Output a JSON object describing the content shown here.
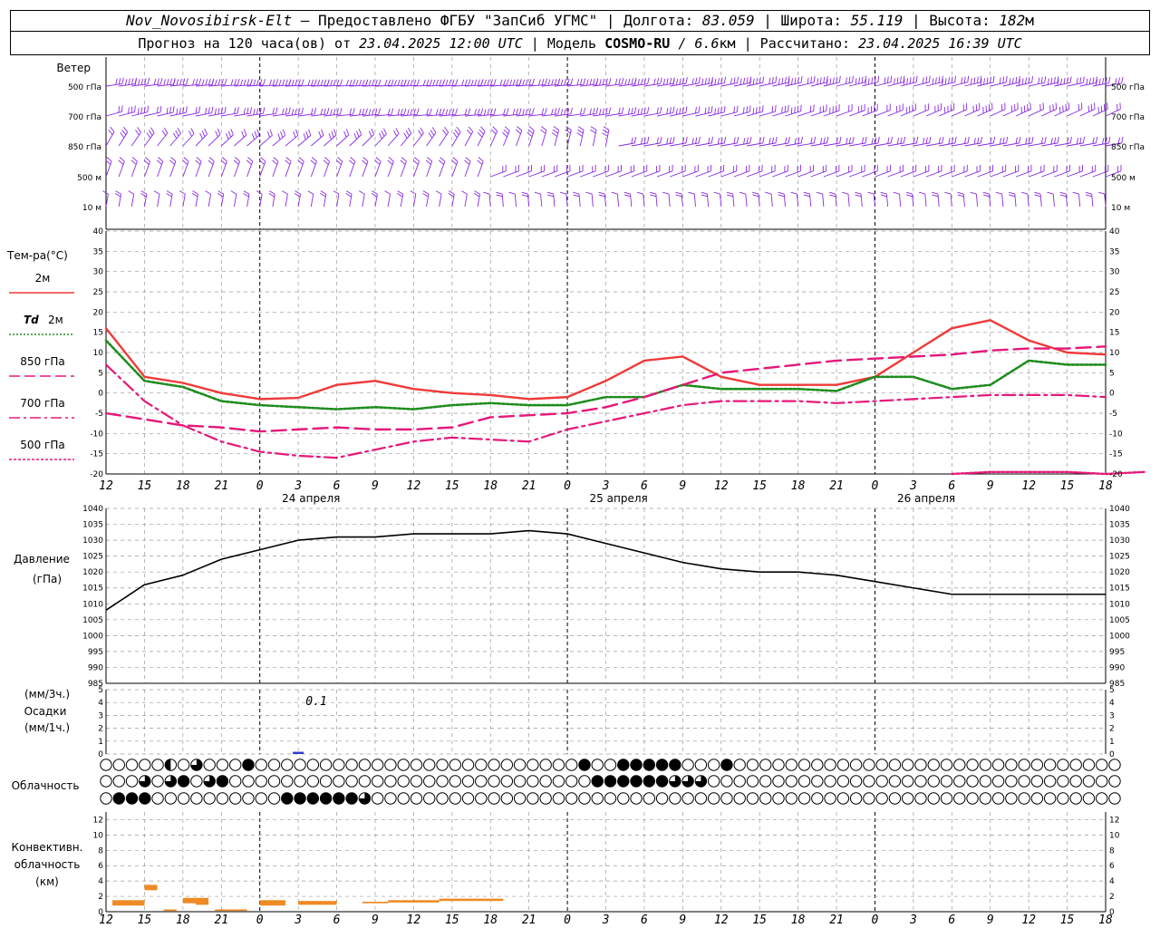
{
  "header": {
    "station": "Nov_Novosibirsk-Elt",
    "sep1": " – Предоставлено ФГБУ \"ЗапСиб УГМС\" | ",
    "lon_label": "Долгота: ",
    "lon": "83.059",
    "lat_label": " | Широта: ",
    "lat": "55.119",
    "alt_label": " | Высота: ",
    "alt": "182",
    "alt_unit": "м",
    "forecast_label": "Прогноз на 120 часа(ов) от ",
    "forecast_time": "23.04.2025 12:00 UTC",
    "model_label": " | Модель ",
    "model": "COSMO-RU",
    "res": " / 6.6",
    "res_unit": "км",
    "calc_label": " | Рассчитано: ",
    "calc_time": "23.04.2025 16:39 UTC"
  },
  "x_axis": {
    "tick_labels": [
      "12",
      "15",
      "18",
      "21",
      "0",
      "3",
      "6",
      "9",
      "12",
      "15",
      "18",
      "21",
      "0",
      "3",
      "6",
      "9",
      "12",
      "15",
      "18",
      "21",
      "0",
      "3",
      "6",
      "9",
      "12",
      "15",
      "18"
    ],
    "date_labels": [
      {
        "text": "24 апреля",
        "hour": 16
      },
      {
        "text": "25 апреля",
        "hour": 40
      },
      {
        "text": "26 апреля",
        "hour": 64
      }
    ]
  },
  "wind_panel": {
    "title": "Ветер",
    "levels": [
      "500 гПа",
      "700 гПа",
      "850 гПа",
      "500 м",
      "10 м"
    ],
    "color": "#8a2be2"
  },
  "temp_panel": {
    "title": "Тем-ра(°C)",
    "legend": [
      {
        "label": "2м",
        "label_prefix": "",
        "color": "#ef3a3a",
        "style": "solid"
      },
      {
        "label": "2м",
        "label_prefix": "Td",
        "color": "#1e8c1e",
        "style": "dotted"
      },
      {
        "label": "850 гПа",
        "label_prefix": "",
        "color": "#e5187a",
        "style": "dash"
      },
      {
        "label": "700 гПа",
        "label_prefix": "",
        "color": "#e5187a",
        "style": "dashdot"
      },
      {
        "label": "500 гПа",
        "label_prefix": "",
        "color": "#e5187a",
        "style": "dot"
      }
    ],
    "yticks": [
      40,
      35,
      30,
      25,
      20,
      15,
      10,
      5,
      0,
      -5,
      -10,
      -15,
      -20
    ]
  },
  "pressure_panel": {
    "title": "Давление",
    "unit": "(гПа)",
    "yticks": [
      1040,
      1035,
      1030,
      1025,
      1020,
      1015,
      1010,
      1005,
      1000,
      995,
      990,
      985
    ]
  },
  "precip_panel": {
    "unit_top": "(мм/3ч.)",
    "title": "Осадки",
    "unit_bottom": "(мм/1ч.)",
    "yticks": [
      5,
      4,
      3,
      2,
      1,
      0
    ],
    "annotation": "0.1"
  },
  "cloud_panel": {
    "title": "Облачность"
  },
  "conv_panel": {
    "title_lines": [
      "Конвективн.",
      "облачность",
      "(км)"
    ],
    "yticks": [
      12,
      10,
      8,
      6,
      4,
      2,
      0
    ],
    "color": "#f08a24"
  },
  "chart_data": {
    "type": "line",
    "x_hours": [
      0,
      3,
      6,
      9,
      12,
      15,
      18,
      21,
      24,
      27,
      30,
      33,
      36,
      39,
      42,
      45,
      48,
      51,
      54,
      57,
      60,
      63,
      66,
      69,
      72,
      75,
      78
    ],
    "series": [
      {
        "name": "2м",
        "values": [
          16,
          4,
          2.5,
          0,
          -1.5,
          -1.2,
          2,
          3,
          1,
          0,
          -0.5,
          -1.5,
          -1,
          3,
          8,
          9,
          4,
          2,
          2,
          2,
          4,
          10,
          16,
          18,
          13,
          10,
          9.5
        ]
      },
      {
        "name": "Td 2м",
        "values": [
          13,
          3,
          1.5,
          -2,
          -3,
          -3.5,
          -4,
          -3.5,
          -4,
          -3,
          -2.5,
          -3,
          -3,
          -1,
          -1,
          2,
          1,
          1,
          1,
          0.5,
          4,
          4,
          1,
          2,
          8,
          7,
          7
        ]
      },
      {
        "name": "850 гПа",
        "values": [
          -5,
          -6.5,
          -8,
          -8.5,
          -9.5,
          -9,
          -8.5,
          -9,
          -9,
          -8.5,
          -6,
          -5.5,
          -5,
          -3.5,
          -1,
          2,
          5,
          6,
          7,
          8,
          8.5,
          9,
          9.5,
          10.5,
          11,
          11,
          11.5
        ]
      },
      {
        "name": "700 гПа",
        "values": [
          7,
          -2,
          -8,
          -12,
          -14.5,
          -15.5,
          -16,
          -14,
          -12,
          -11,
          -11.5,
          -12,
          -9,
          -7,
          -5,
          -3,
          -2,
          -2,
          -2,
          -2.5,
          -2,
          -1.5,
          -1,
          -0.5,
          -0.5,
          -0.5,
          -1
        ]
      },
      {
        "name": "500 гПа",
        "x_start": 66,
        "values_from_x66": [
          -20,
          -19.5,
          -19.5,
          -19.5,
          -20,
          -19.5
        ]
      }
    ],
    "pressure": {
      "name": "Давление",
      "values": [
        1008,
        1016,
        1019,
        1024,
        1027,
        1030,
        1031,
        1031,
        1032,
        1032,
        1032,
        1033,
        1032,
        1029,
        1026,
        1023,
        1021,
        1020,
        1020,
        1019,
        1017,
        1015,
        1013,
        1013,
        1013,
        1013,
        1013
      ]
    },
    "precipitation": {
      "x_hour": 15,
      "value": 0.1
    },
    "convective_cloud": [
      {
        "from": 0.5,
        "to": 3,
        "bottom": 0.8,
        "top": 1.5
      },
      {
        "from": 3,
        "to": 4,
        "bottom": 2.8,
        "top": 3.5
      },
      {
        "from": 4.5,
        "to": 5.5,
        "bottom": 0.1,
        "top": 0.3
      },
      {
        "from": 6,
        "to": 7,
        "bottom": 1.1,
        "top": 1.8
      },
      {
        "from": 7,
        "to": 8,
        "bottom": 0.9,
        "top": 1.8
      },
      {
        "from": 8.5,
        "to": 11,
        "bottom": 0.1,
        "top": 0.3
      },
      {
        "from": 12,
        "to": 14,
        "bottom": 0.8,
        "top": 1.5
      },
      {
        "from": 15,
        "to": 18,
        "bottom": 0.9,
        "top": 1.4
      },
      {
        "from": 20,
        "to": 22,
        "bottom": 1.1,
        "top": 1.3
      },
      {
        "from": 22,
        "to": 26,
        "bottom": 1.2,
        "top": 1.5
      },
      {
        "from": 26,
        "to": 31,
        "bottom": 1.4,
        "top": 1.7
      }
    ],
    "cloud_cover": {
      "count": 79,
      "rows": [
        "hhhhhbhqhhhfhhhhhhhhhhhhhhhhhhhhhhhhhfhhfffffhhhfhhhhhhhhhhhhhhhhhhhhhhhhhhhhhh",
        "hhhqhqfhqfhhhhhhhhhhhhhhhhhhhhhhhhhhhhffffffqqqhhhhhhhhhhhhhhhhhhhhhhhhhhhhhhhh",
        "hfffhhhhhhhhhhffffffqhhhhhhhhhhhhhhhhhhhhhhhhhhhhhhhhhhhhhhhhhhhhhhhhhhhhhhhhhh"
      ]
    }
  }
}
